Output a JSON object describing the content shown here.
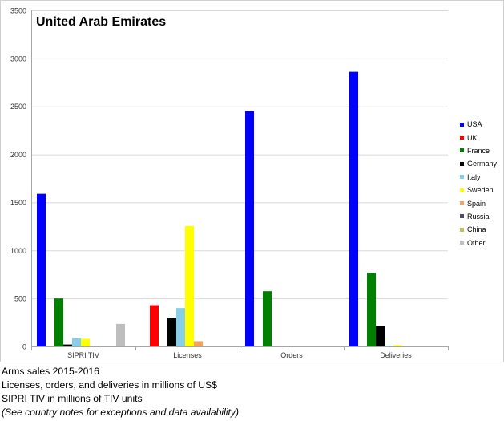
{
  "chart_data": {
    "type": "bar",
    "title": "United Arab Emirates",
    "categories": [
      "SIPRI TIV",
      "Licenses",
      "Orders",
      "Deliveries"
    ],
    "ylim": [
      0,
      3500
    ],
    "yticks": [
      0,
      500,
      1000,
      1500,
      2000,
      2500,
      3000,
      3500
    ],
    "grid": true,
    "legend_position": "right",
    "series": [
      {
        "name": "USA",
        "color": "#0000FF",
        "values": [
          1590,
          0,
          2450,
          2860
        ]
      },
      {
        "name": "UK",
        "color": "#FF0000",
        "values": [
          0,
          430,
          0,
          0
        ]
      },
      {
        "name": "France",
        "color": "#008000",
        "values": [
          500,
          0,
          575,
          765
        ]
      },
      {
        "name": "Germany",
        "color": "#000000",
        "values": [
          20,
          300,
          0,
          215
        ]
      },
      {
        "name": "Italy",
        "color": "#87CEEB",
        "values": [
          85,
          400,
          0,
          8
        ]
      },
      {
        "name": "Sweden",
        "color": "#FFFF00",
        "values": [
          80,
          1255,
          0,
          12
        ]
      },
      {
        "name": "Spain",
        "color": "#F4A460",
        "values": [
          0,
          55,
          0,
          0
        ]
      },
      {
        "name": "Russia",
        "color": "#4B4B6B",
        "values": [
          0,
          0,
          0,
          0
        ]
      },
      {
        "name": "China",
        "color": "#C0C060",
        "values": [
          0,
          0,
          0,
          0
        ]
      },
      {
        "name": "Other",
        "color": "#BEBEBE",
        "values": [
          235,
          0,
          0,
          0
        ]
      }
    ]
  },
  "notes": [
    "Arms sales 2015-2016",
    "Licenses, orders, and deliveries in millions of US$",
    "SIPRI TIV in millions of TIV units",
    "(See country notes for exceptions and data availability)"
  ]
}
